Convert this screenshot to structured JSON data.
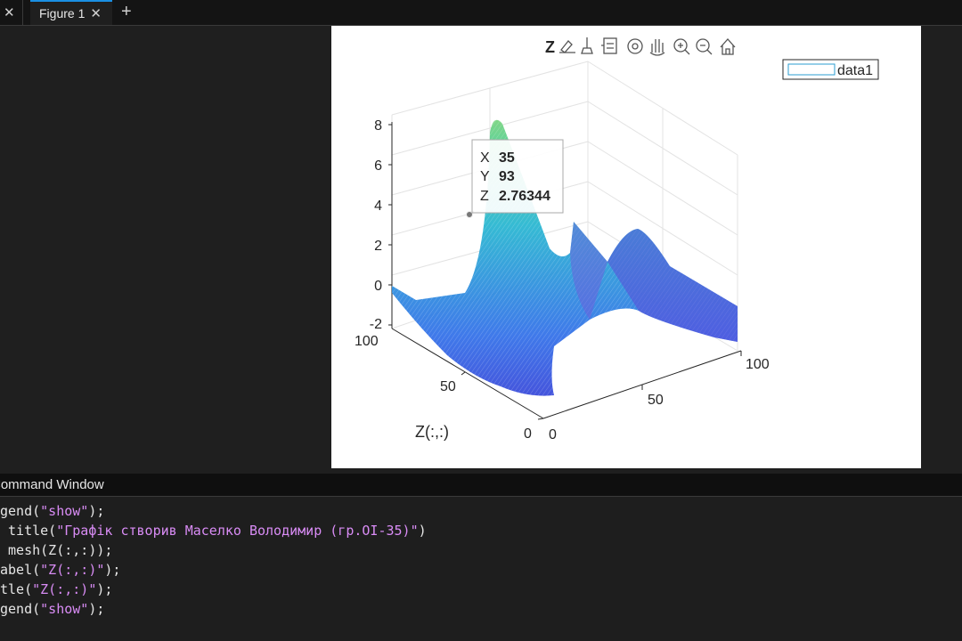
{
  "tabs": {
    "prev_label": "",
    "active_label": "Figure 1",
    "close_glyph": "✕",
    "add_glyph": "+"
  },
  "figure": {
    "toolbar": {
      "first_item_label": "Z",
      "icons": [
        "brush-icon",
        "bin-icon",
        "data-cursor-icon",
        "rotate-icon",
        "pan-icon",
        "zoom-in-icon",
        "zoom-out-icon",
        "home-icon"
      ]
    },
    "legend": {
      "label": "data1",
      "swatch_color": "#2b9ed1"
    },
    "zlabel": "Z(:,:)",
    "z_ticks": [
      "8",
      "6",
      "4",
      "2",
      "0",
      "-2"
    ],
    "y_ticks": [
      "100",
      "50",
      "0"
    ],
    "x_ticks": [
      "0",
      "50",
      "100"
    ],
    "datatip": {
      "x_label": "X",
      "x_value": "35",
      "y_label": "Y",
      "y_value": "93",
      "z_label": "Z",
      "z_value": "2.76344"
    }
  },
  "command_window": {
    "title": "Command Window",
    "lines": [
      {
        "a": "",
        "s": "",
        "b": ""
      },
      {
        "a": "gend(",
        "s": "\"show\"",
        "b": ");"
      },
      {
        "a": " title(",
        "s": "\"Графік створив Маселко Володимир (гр.ОІ-35)\"",
        "b": ")"
      },
      {
        "a": " mesh(Z(:,:));",
        "s": "",
        "b": ""
      },
      {
        "a": "abel(",
        "s": "\"Z(:,:)\"",
        "b": ");"
      },
      {
        "a": "tle(",
        "s": "\"Z(:,:)\"",
        "b": ");"
      },
      {
        "a": "gend(",
        "s": "\"show\"",
        "b": ");"
      }
    ]
  }
}
